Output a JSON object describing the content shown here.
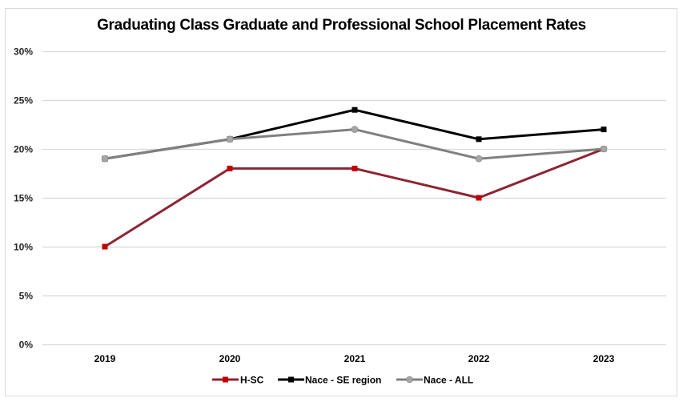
{
  "chart_data": {
    "type": "line",
    "title": "Graduating Class Graduate and Professional School Placement Rates",
    "xlabel": "",
    "ylabel": "",
    "categories": [
      "2019",
      "2020",
      "2021",
      "2022",
      "2023"
    ],
    "y_ticks": [
      "0%",
      "5%",
      "10%",
      "15%",
      "20%",
      "25%",
      "30%"
    ],
    "ylim": [
      0,
      30
    ],
    "grid": true,
    "legend_position": "bottom",
    "series": [
      {
        "name": "H-SC",
        "values": [
          10,
          18,
          18,
          15,
          20
        ],
        "line_color": "#8E2434",
        "marker_color": "#C00000",
        "marker": "square"
      },
      {
        "name": "Nace - SE region",
        "values": [
          19,
          21,
          24,
          21,
          22
        ],
        "line_color": "#000000",
        "marker_color": "#000000",
        "marker": "square"
      },
      {
        "name": "Nace - ALL",
        "values": [
          19,
          21,
          22,
          19,
          20
        ],
        "line_color": "#808080",
        "marker_color": "#A6A6A6",
        "marker": "circle"
      }
    ]
  }
}
